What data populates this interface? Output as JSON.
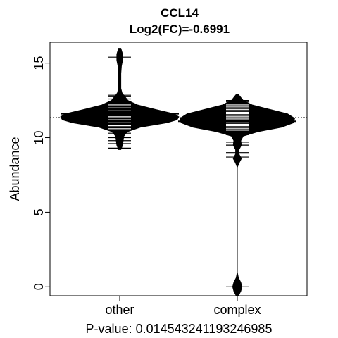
{
  "chart_data": {
    "type": "beanplot",
    "title_line1": "CCL14",
    "title_line2": "Log2(FC)=-0.6991",
    "ylabel": "Abundance",
    "xlabel": "P-value: 0.014543241193246985",
    "ylim": [
      -0.6,
      16.4
    ],
    "yticks": [
      0,
      5,
      10,
      15
    ],
    "overall_mean": 11.35,
    "categories": [
      "other",
      "complex"
    ],
    "groups": [
      {
        "name": "other",
        "mean": 11.6,
        "range": [
          9.2,
          16.0
        ],
        "density": [
          {
            "y": 9.2,
            "w": 0.02
          },
          {
            "y": 9.5,
            "w": 0.05
          },
          {
            "y": 9.8,
            "w": 0.06
          },
          {
            "y": 10.1,
            "w": 0.07
          },
          {
            "y": 10.4,
            "w": 0.13
          },
          {
            "y": 10.7,
            "w": 0.35
          },
          {
            "y": 11.0,
            "w": 0.8
          },
          {
            "y": 11.2,
            "w": 0.97
          },
          {
            "y": 11.4,
            "w": 1.0
          },
          {
            "y": 11.6,
            "w": 0.92
          },
          {
            "y": 11.9,
            "w": 0.6
          },
          {
            "y": 12.2,
            "w": 0.3
          },
          {
            "y": 12.5,
            "w": 0.14
          },
          {
            "y": 12.8,
            "w": 0.08
          },
          {
            "y": 13.0,
            "w": 0.04
          },
          {
            "y": 13.3,
            "w": 0.02
          },
          {
            "y": 13.8,
            "w": 0.02
          },
          {
            "y": 14.3,
            "w": 0.02
          },
          {
            "y": 14.8,
            "w": 0.03
          },
          {
            "y": 15.2,
            "w": 0.05
          },
          {
            "y": 15.6,
            "w": 0.05
          },
          {
            "y": 16.0,
            "w": 0.02
          }
        ],
        "points": [
          9.3,
          9.6,
          9.8,
          10.0,
          10.3,
          10.6,
          10.8,
          11.0,
          11.2,
          11.4,
          11.6,
          11.8,
          12.0,
          12.2,
          12.4,
          12.6,
          12.75,
          12.85,
          15.4
        ]
      },
      {
        "name": "complex",
        "mean": 11.1,
        "range": [
          -0.6,
          12.9
        ],
        "density": [
          {
            "y": -0.6,
            "w": 0.02
          },
          {
            "y": -0.3,
            "w": 0.06
          },
          {
            "y": 0.0,
            "w": 0.08
          },
          {
            "y": 0.3,
            "w": 0.06
          },
          {
            "y": 0.6,
            "w": 0.02
          },
          {
            "y": 1.0,
            "w": 0.0
          },
          {
            "y": 8.0,
            "w": 0.0
          },
          {
            "y": 8.3,
            "w": 0.03
          },
          {
            "y": 8.6,
            "w": 0.07
          },
          {
            "y": 8.9,
            "w": 0.03
          },
          {
            "y": 9.2,
            "w": 0.03
          },
          {
            "y": 9.5,
            "w": 0.07
          },
          {
            "y": 9.8,
            "w": 0.06
          },
          {
            "y": 10.1,
            "w": 0.1
          },
          {
            "y": 10.4,
            "w": 0.35
          },
          {
            "y": 10.7,
            "w": 0.75
          },
          {
            "y": 11.0,
            "w": 0.95
          },
          {
            "y": 11.3,
            "w": 0.97
          },
          {
            "y": 11.6,
            "w": 0.85
          },
          {
            "y": 11.9,
            "w": 0.55
          },
          {
            "y": 12.2,
            "w": 0.25
          },
          {
            "y": 12.5,
            "w": 0.1
          },
          {
            "y": 12.8,
            "w": 0.04
          },
          {
            "y": 12.9,
            "w": 0.02
          }
        ],
        "points": [
          0.0,
          8.7,
          9.0,
          9.5,
          9.7,
          10.2,
          10.5,
          10.6,
          10.7,
          10.8,
          10.9,
          11.0,
          11.1,
          11.2,
          11.3,
          11.4,
          11.5,
          11.6,
          11.7,
          11.8,
          11.9,
          12.0,
          12.1,
          12.2,
          12.3,
          12.4,
          12.5
        ]
      }
    ]
  }
}
